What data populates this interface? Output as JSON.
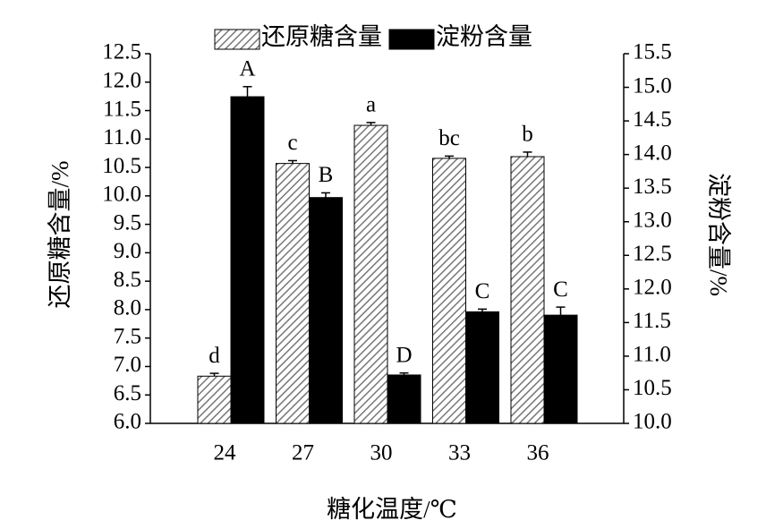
{
  "chart_data": {
    "type": "bar",
    "x_label": "糖化温度/℃",
    "y_label": "还原糖含量/%",
    "y2_label": "淀粉含量/%",
    "categories": [
      "24",
      "27",
      "30",
      "33",
      "36"
    ],
    "series": [
      {
        "name": "还原糖含量",
        "color": "#888888",
        "hatch": true,
        "values": [
          6.83,
          10.57,
          11.24,
          10.66,
          10.69
        ],
        "errors": [
          0.05,
          0.05,
          0.05,
          0.04,
          0.08
        ],
        "letters": [
          "d",
          "c",
          "a",
          "bc",
          "b"
        ]
      },
      {
        "name": "淀粉含量",
        "color": "#000000",
        "axis": "y2",
        "values": [
          14.86,
          13.36,
          10.72,
          11.66,
          11.61
        ],
        "errors": [
          0.15,
          0.07,
          0.03,
          0.04,
          0.12
        ],
        "letters": [
          "A",
          "B",
          "D",
          "C",
          "C"
        ]
      }
    ],
    "ylim": [
      6,
      12.5
    ],
    "yticks": [
      {
        "value": 6,
        "label": "6.0"
      },
      6.5,
      {
        "value": 7,
        "label": "7.0"
      },
      7.5,
      {
        "value": 8,
        "label": "8.0"
      },
      8.5,
      {
        "value": 9,
        "label": "9.0"
      },
      9.5,
      {
        "value": 10,
        "label": "10.0"
      },
      10.5,
      {
        "value": 11,
        "label": "11.0"
      },
      11.5,
      {
        "value": 12,
        "label": "12.0"
      },
      12.5
    ],
    "y2lim": [
      10,
      15.5
    ],
    "y2ticks": [
      {
        "value": 10,
        "label": "10.0"
      },
      10.5,
      {
        "value": 11,
        "label": "11.0"
      },
      11.5,
      {
        "value": 12,
        "label": "12.0"
      },
      12.5,
      {
        "value": 13,
        "label": "13.0"
      },
      13.5,
      {
        "value": 14,
        "label": "14.0"
      },
      14.5,
      {
        "value": 15,
        "label": "15.0"
      },
      15.5
    ],
    "legend": "top"
  }
}
